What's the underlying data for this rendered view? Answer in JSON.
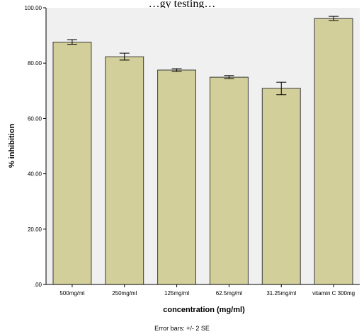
{
  "header_text": "…gy testing…",
  "chart_data": {
    "type": "bar",
    "categories": [
      "500mg/ml",
      "250mg/ml",
      "125mg/ml",
      "62.5mg/ml",
      "31.25mg/ml",
      "vitamin C 300mg"
    ],
    "values": [
      87.6,
      82.3,
      77.5,
      74.9,
      70.9,
      96.1
    ],
    "error_bars": {
      "low": [
        86.8,
        81.1,
        77.0,
        74.4,
        68.6,
        95.4
      ],
      "high": [
        88.5,
        83.6,
        78.0,
        75.5,
        73.1,
        96.9
      ]
    },
    "title": "",
    "xlabel": "concentration (mg/ml)",
    "ylabel": "% inhibition",
    "ylim": [
      0,
      100
    ],
    "yticks": [
      ".00",
      "20.00",
      "40.00",
      "60.00",
      "80.00",
      "100.00"
    ],
    "note": "Error bars: +/- 2 SE",
    "grid": false,
    "legend": "none",
    "colors": {
      "bar_fill": "#d3cf9a",
      "bar_stroke": "#3a3a3a",
      "plot_background": "#f0f0f0",
      "axis": "#000000"
    }
  }
}
